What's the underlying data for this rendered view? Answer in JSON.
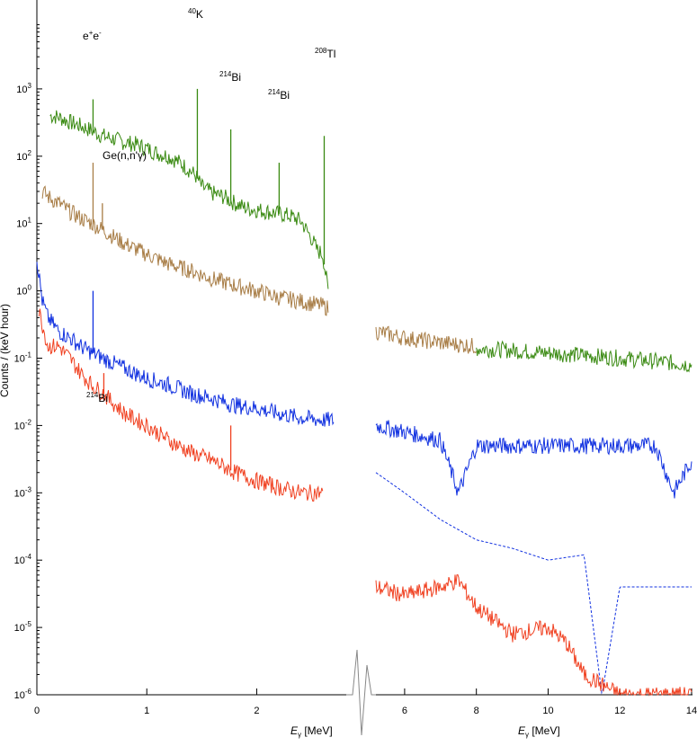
{
  "chart_data": {
    "type": "line",
    "ylabel": "Counts / (keV hour)",
    "y_scale": "log",
    "ylim": [
      1e-06,
      10000
    ],
    "y_ticks": [
      {
        "value": 1e-06,
        "base": "10",
        "exp": "-6"
      },
      {
        "value": 1e-05,
        "base": "10",
        "exp": "-5"
      },
      {
        "value": 0.0001,
        "base": "10",
        "exp": "-4"
      },
      {
        "value": 0.001,
        "base": "10",
        "exp": "-3"
      },
      {
        "value": 0.01,
        "base": "10",
        "exp": "-2"
      },
      {
        "value": 0.1,
        "base": "10",
        "exp": "-1"
      },
      {
        "value": 1,
        "base": "10",
        "exp": "0"
      },
      {
        "value": 10,
        "base": "10",
        "exp": "1"
      },
      {
        "value": 100,
        "base": "10",
        "exp": "2"
      },
      {
        "value": 1000,
        "base": "10",
        "exp": "3"
      }
    ],
    "panels": [
      {
        "id": "low",
        "xlabel_var": "E",
        "xlabel_sub": "γ",
        "xlabel_unit": " [MeV]",
        "xlim": [
          0,
          2.7
        ],
        "x_ticks": [
          "0",
          "1",
          "2"
        ],
        "x_tick_values": [
          0,
          1,
          2
        ]
      },
      {
        "id": "high",
        "xlabel_var": "E",
        "xlabel_sub": "γ",
        "xlabel_unit": " [MeV]",
        "xlim": [
          5.2,
          14
        ],
        "x_ticks": [
          "6",
          "8",
          "10",
          "12",
          "14"
        ],
        "x_tick_values": [
          6,
          8,
          10,
          12,
          14
        ]
      }
    ],
    "series": [
      {
        "color": "#3a8a12",
        "low": {
          "x": [
            0.12,
            0.2,
            0.3,
            0.4,
            0.5,
            0.6,
            0.7,
            0.8,
            0.9,
            1.0,
            1.1,
            1.2,
            1.3,
            1.4,
            1.45,
            1.5,
            1.6,
            1.7,
            1.8,
            1.9,
            2.0,
            2.1,
            2.2,
            2.3,
            2.4,
            2.5,
            2.55,
            2.6,
            2.65
          ],
          "y": [
            400,
            380,
            320,
            280,
            240,
            200,
            180,
            160,
            150,
            130,
            110,
            100,
            80,
            60,
            50,
            35,
            28,
            25,
            20,
            17,
            16,
            15,
            14,
            13,
            11,
            6,
            4,
            3.5,
            1
          ]
        },
        "high": {
          "x": [
            8.0,
            9.0,
            10.0,
            11.0,
            12.0,
            13.0,
            14.0
          ],
          "y": [
            0.14,
            0.13,
            0.12,
            0.11,
            0.1,
            0.09,
            0.08
          ]
        },
        "peaks": [
          {
            "x": 0.511,
            "y": 700
          },
          {
            "x": 1.46,
            "y": 1000
          },
          {
            "x": 1.764,
            "y": 250
          },
          {
            "x": 2.204,
            "y": 80
          },
          {
            "x": 2.614,
            "y": 200
          }
        ]
      },
      {
        "color": "#a87d46",
        "low": {
          "x": [
            0.05,
            0.1,
            0.2,
            0.3,
            0.4,
            0.5,
            0.6,
            0.8,
            1.0,
            1.2,
            1.4,
            1.6,
            1.8,
            2.0,
            2.2,
            2.4,
            2.6,
            2.65
          ],
          "y": [
            30,
            25,
            20,
            15,
            12,
            10,
            8,
            5,
            3.5,
            2.5,
            2,
            1.5,
            1.2,
            1,
            0.8,
            0.7,
            0.6,
            0.55
          ]
        },
        "high": {
          "x": [
            5.2,
            6.0,
            7.0,
            8.0
          ],
          "y": [
            0.25,
            0.2,
            0.17,
            0.15
          ]
        },
        "peaks": [
          {
            "x": 0.511,
            "y": 80
          },
          {
            "x": 0.596,
            "y": 20
          }
        ]
      },
      {
        "color": "#1030e0",
        "low": {
          "x": [
            0.0,
            0.05,
            0.1,
            0.2,
            0.3,
            0.4,
            0.5,
            0.6,
            0.8,
            1.0,
            1.2,
            1.4,
            1.6,
            1.8,
            2.0,
            2.2,
            2.4,
            2.6,
            2.7
          ],
          "y": [
            3,
            0.7,
            0.4,
            0.25,
            0.2,
            0.15,
            0.12,
            0.1,
            0.07,
            0.05,
            0.04,
            0.03,
            0.025,
            0.02,
            0.018,
            0.015,
            0.013,
            0.012,
            0.012
          ]
        },
        "high": {
          "x": [
            5.2,
            6.0,
            7.0,
            7.5,
            8.0,
            9.0,
            10.0,
            11.0,
            12.0,
            13.0,
            13.5,
            14.0
          ],
          "y": [
            0.01,
            0.008,
            0.006,
            0.001,
            0.005,
            0.005,
            0.005,
            0.005,
            0.005,
            0.005,
            0.001,
            0.003
          ]
        },
        "peaks": [
          {
            "x": 0.511,
            "y": 1.0
          }
        ]
      },
      {
        "color": "#1030e0",
        "dashed": true,
        "high": {
          "x": [
            5.2,
            6.0,
            7.0,
            8.0,
            9.0,
            10.0,
            11.0,
            11.5,
            12.0,
            13.0,
            14.0
          ],
          "y": [
            0.002,
            0.001,
            0.0004,
            0.0002,
            0.00015,
            0.0001,
            0.00012,
            1e-06,
            4e-05,
            4e-05,
            4e-05
          ]
        }
      },
      {
        "color": "#f04020",
        "low": {
          "x": [
            0.02,
            0.1,
            0.2,
            0.3,
            0.4,
            0.5,
            0.6,
            0.8,
            1.0,
            1.2,
            1.4,
            1.6,
            1.8,
            2.0,
            2.2,
            2.4,
            2.6
          ],
          "y": [
            0.5,
            0.15,
            0.15,
            0.1,
            0.06,
            0.04,
            0.03,
            0.015,
            0.01,
            0.006,
            0.004,
            0.003,
            0.002,
            0.0015,
            0.0012,
            0.001,
            0.001
          ]
        },
        "high": {
          "x": [
            5.2,
            6.0,
            7.0,
            7.5,
            8.0,
            9.0,
            10.0,
            10.5,
            11.0,
            12.0,
            13.0,
            14.0
          ],
          "y": [
            4e-05,
            3e-05,
            4e-05,
            5e-05,
            2e-05,
            8e-06,
            1e-05,
            6e-06,
            2e-06,
            1e-06,
            1e-06,
            1e-06
          ]
        },
        "peaks": [
          {
            "x": 0.609,
            "y": 0.06
          },
          {
            "x": 1.764,
            "y": 0.01
          }
        ]
      }
    ],
    "annotations": [
      {
        "id": "ee",
        "parts": [
          {
            "t": "e"
          },
          {
            "t": "+",
            "sup": true
          },
          {
            "t": "e"
          },
          {
            "t": "-",
            "sup": true
          }
        ]
      },
      {
        "id": "k40",
        "parts": [
          {
            "t": "40",
            "sup": true
          },
          {
            "t": "K"
          }
        ]
      },
      {
        "id": "bi214a",
        "parts": [
          {
            "t": "214",
            "sup": true
          },
          {
            "t": "Bi"
          }
        ]
      },
      {
        "id": "bi214b",
        "parts": [
          {
            "t": "214",
            "sup": true
          },
          {
            "t": "Bi"
          }
        ]
      },
      {
        "id": "tl208",
        "parts": [
          {
            "t": "208",
            "sup": true
          },
          {
            "t": "Tl"
          }
        ]
      },
      {
        "id": "ge",
        "parts": [
          {
            "t": "Ge(n,n'γ)"
          }
        ]
      },
      {
        "id": "bi214c",
        "parts": [
          {
            "t": "214",
            "sup": true
          },
          {
            "t": "Bi"
          }
        ]
      }
    ]
  }
}
